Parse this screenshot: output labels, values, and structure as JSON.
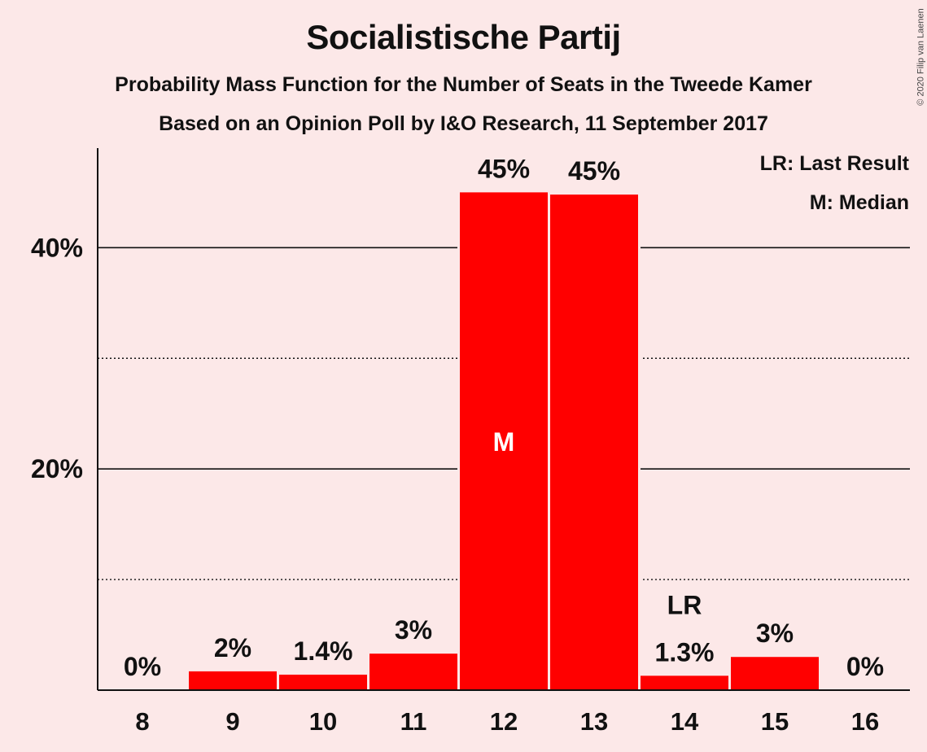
{
  "header": {
    "title": "Socialistische Partij",
    "subtitle": "Probability Mass Function for the Number of Seats in the Tweede Kamer",
    "source": "Based on an Opinion Poll by I&O Research, 11 September 2017",
    "copyright": "© 2020 Filip van Laenen"
  },
  "colors": {
    "background": "#fce8e8",
    "bar": "#ff0000",
    "text": "#111111"
  },
  "chart_data": {
    "type": "bar",
    "categories": [
      "8",
      "9",
      "10",
      "11",
      "12",
      "13",
      "14",
      "15",
      "16"
    ],
    "values": [
      0,
      1.7,
      1.4,
      3.3,
      45,
      44.8,
      1.3,
      3,
      0
    ],
    "labels": [
      "0%",
      "2%",
      "1.4%",
      "3%",
      "45%",
      "45%",
      "1.3%",
      "3%",
      "0%"
    ],
    "yticks": [
      20,
      40
    ],
    "ytick_labels": [
      "20%",
      "40%"
    ],
    "minor_gridlines": [
      10,
      30
    ],
    "ylim": [
      0,
      49
    ],
    "median_index": 4,
    "median_marker": "M",
    "last_result_index": 6,
    "last_result_marker": "LR",
    "legend": [
      "LR: Last Result",
      "M: Median"
    ],
    "legend_position": "top-right",
    "xlabel": "",
    "ylabel": ""
  }
}
